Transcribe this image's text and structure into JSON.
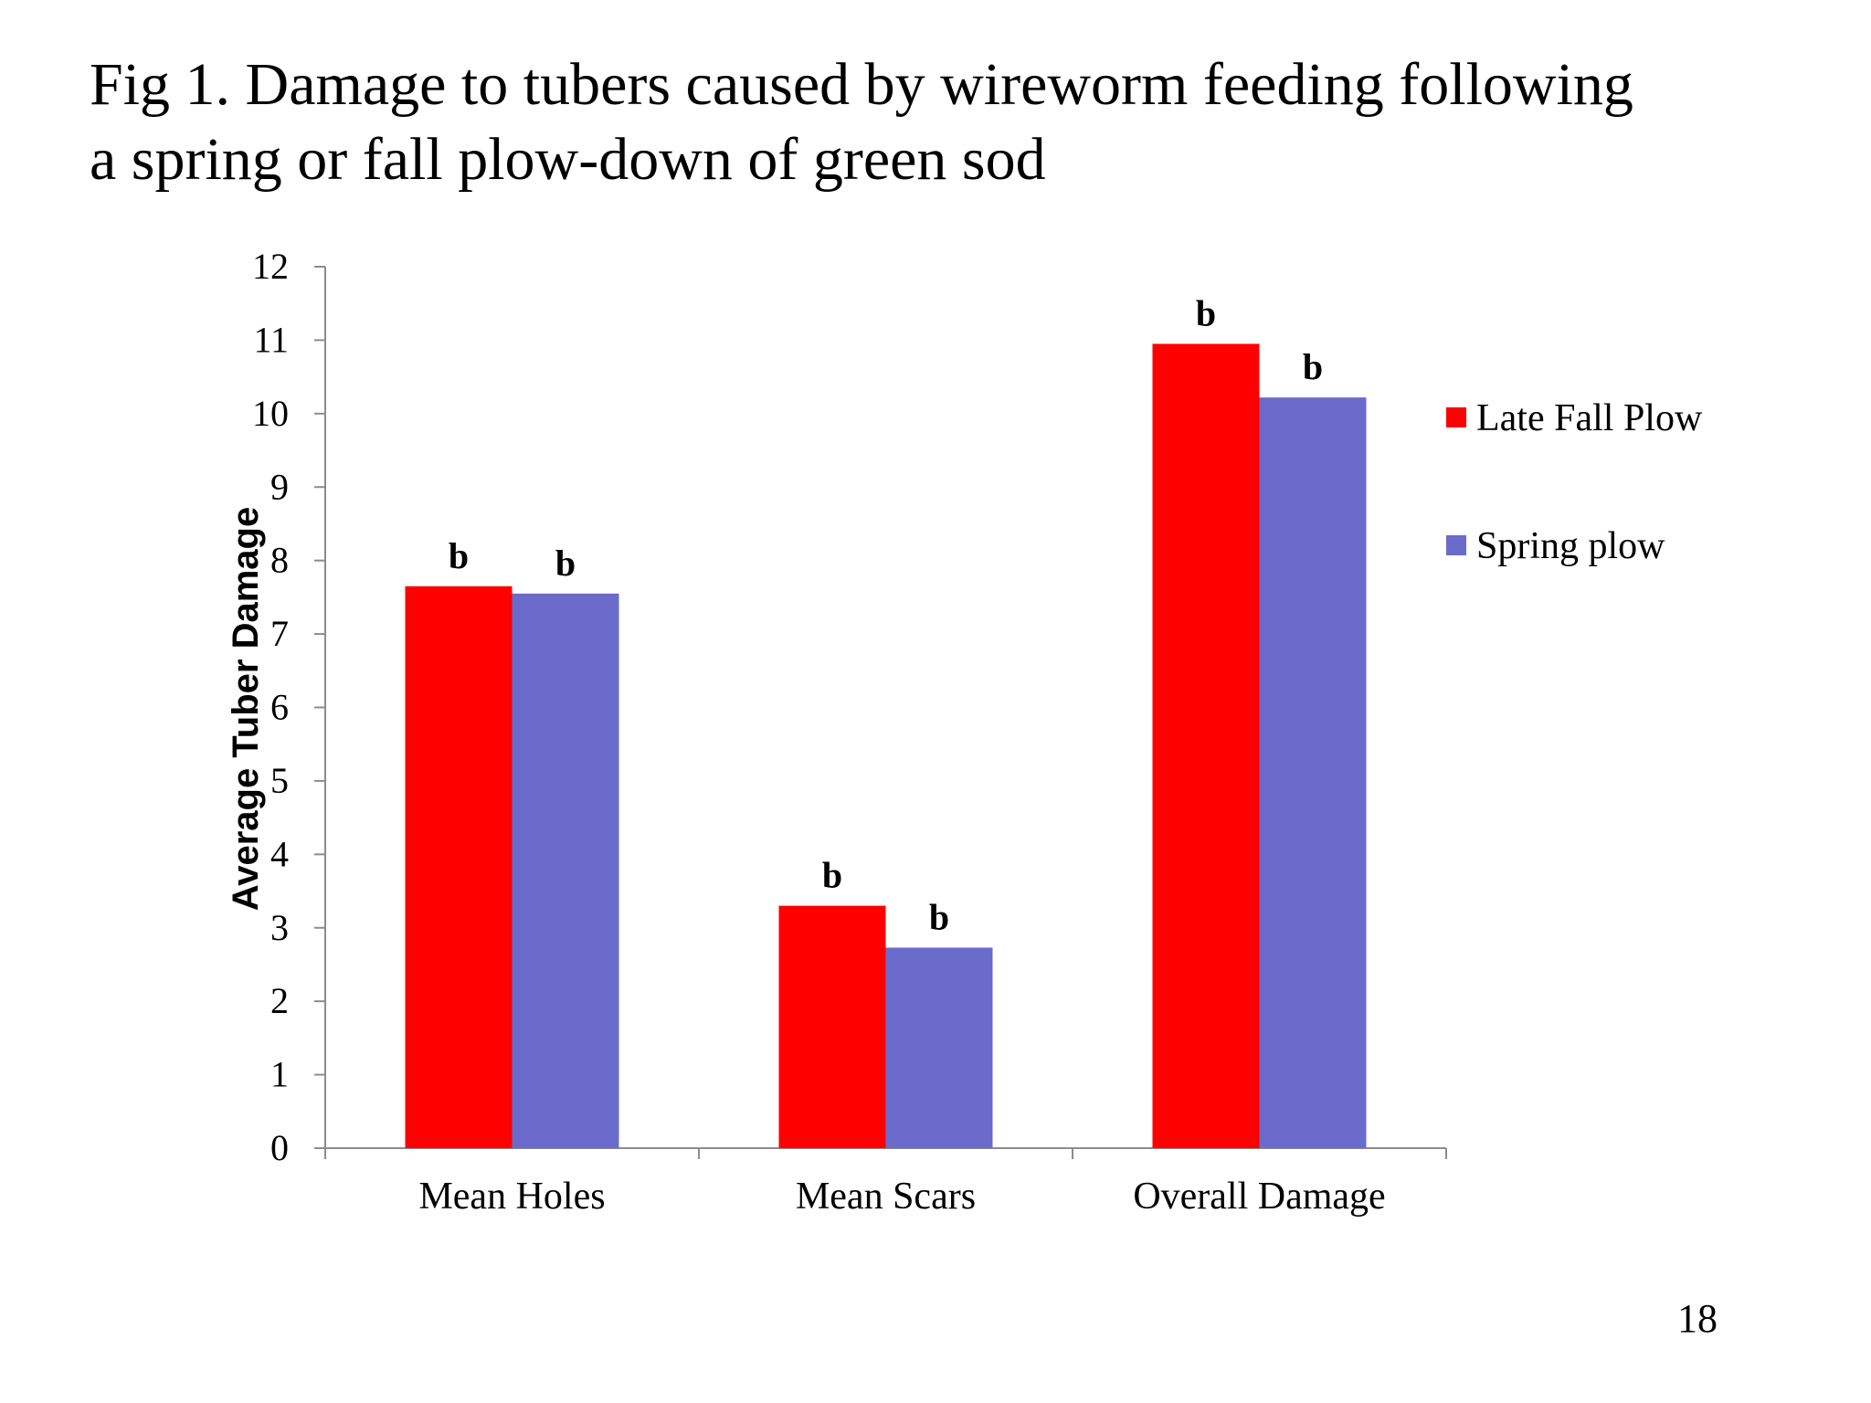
{
  "slide": {
    "title_line1": "Fig 1. Damage to tubers caused by wireworm feeding following",
    "title_line2": "a spring or fall plow-down of green sod",
    "page_number": "18"
  },
  "chart_data": {
    "type": "bar",
    "title": "",
    "xlabel": "",
    "ylabel": "Average Tuber Damage",
    "ylim": [
      0,
      12
    ],
    "y_ticks": [
      0,
      1,
      2,
      3,
      4,
      5,
      6,
      7,
      8,
      9,
      10,
      11,
      12
    ],
    "categories": [
      "Mean Holes",
      "Mean Scars",
      "Overall Damage"
    ],
    "series": [
      {
        "name": "Late Fall Plow",
        "color": "#ff0000",
        "values": [
          7.65,
          3.3,
          10.95
        ],
        "labels": [
          "b",
          "b",
          "b"
        ]
      },
      {
        "name": "Spring plow",
        "color": "#6b6bcc",
        "values": [
          7.55,
          2.73,
          10.22
        ],
        "labels": [
          "b",
          "b",
          "b"
        ]
      }
    ],
    "legend_position": "right",
    "grid": false
  }
}
